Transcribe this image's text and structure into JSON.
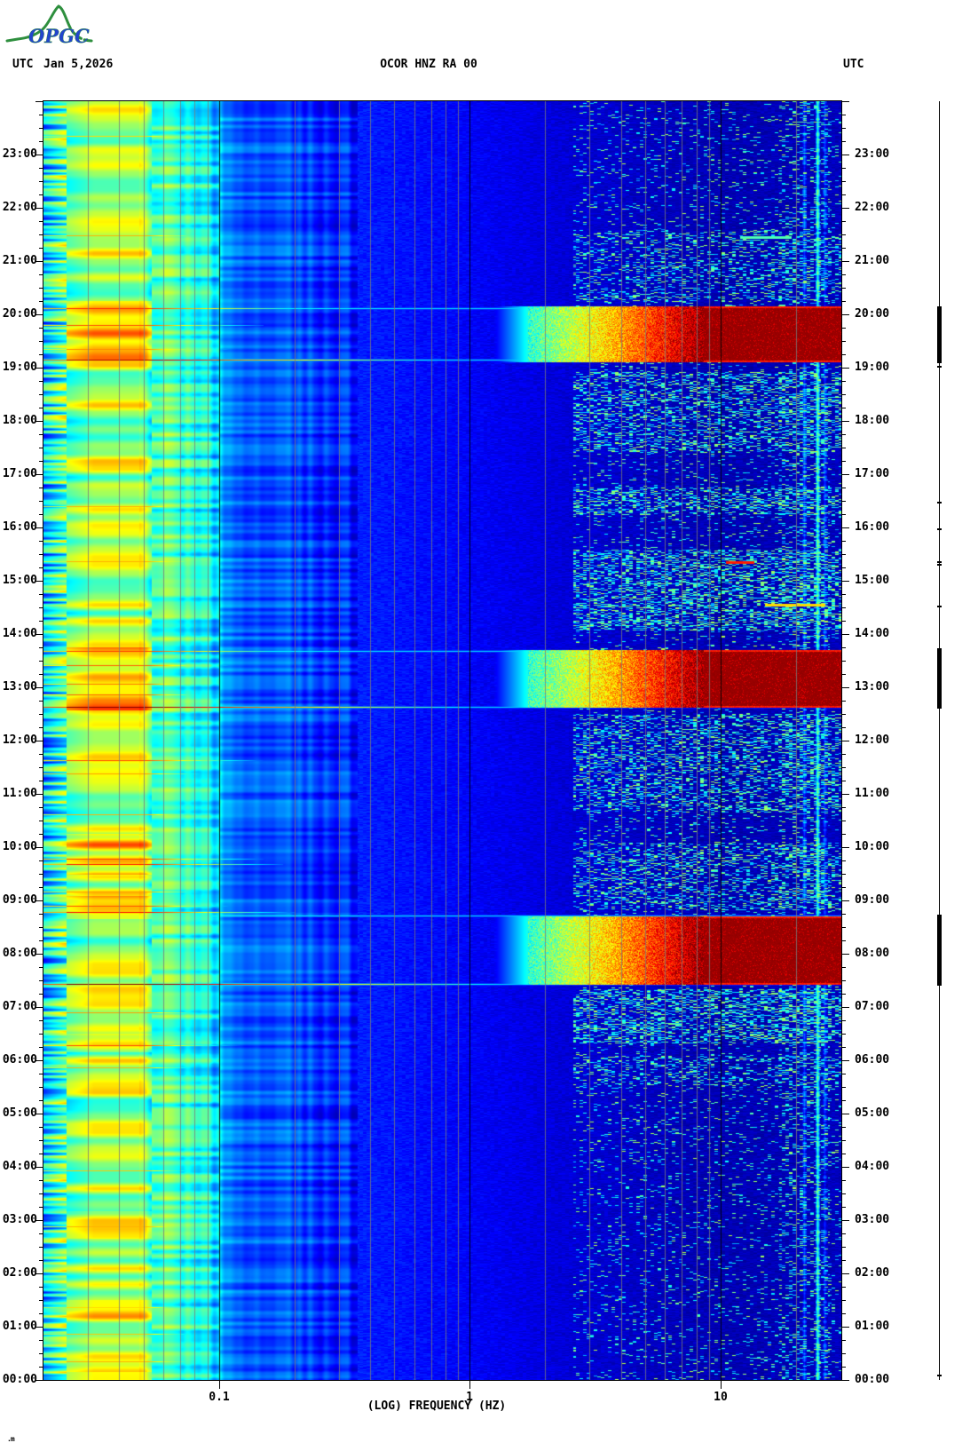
{
  "header": {
    "utc_left": "UTC",
    "date": "Jan 5,2026",
    "title": "OCOR HNZ RA 00",
    "utc_right": "UTC",
    "logo_text": "OPGC"
  },
  "footer_artifact": ".m",
  "colors": {
    "logo_green": "#2e8f3e",
    "logo_blue": "#2244cc",
    "grid_gray": "#7a7a7a",
    "axis_black": "#000000"
  },
  "chart_data": {
    "type": "heatmap",
    "subtype": "seismic-spectrogram",
    "title": "OCOR HNZ RA 00",
    "xlabel": "(LOG) FREQUENCY (HZ)",
    "x_scale": "log",
    "freq_min_hz": 0.02,
    "freq_max_hz": 30,
    "x_ticks": [
      {
        "value": 0.1,
        "label": "0.1"
      },
      {
        "value": 1,
        "label": "1"
      },
      {
        "value": 10,
        "label": "10"
      }
    ],
    "grid_minor_multipliers": [
      2,
      3,
      4,
      5,
      6,
      7,
      8,
      9
    ],
    "y_axis_label": "UTC",
    "time_top": "24:00",
    "time_bottom": "00:00",
    "minutes_per_row": 1,
    "hour_labels": [
      "23:00",
      "22:00",
      "21:00",
      "20:00",
      "19:00",
      "18:00",
      "17:00",
      "16:00",
      "15:00",
      "14:00",
      "13:00",
      "12:00",
      "11:00",
      "10:00",
      "09:00",
      "08:00",
      "07:00",
      "06:00",
      "05:00",
      "04:00",
      "03:00",
      "02:00",
      "01:00",
      "00:00"
    ],
    "colormap": "jet",
    "level_anchors_logf": [
      -1.7,
      -1.62,
      -1.5,
      -1.32,
      -1.26,
      -1.12,
      -1.0,
      -0.9,
      -0.72,
      -0.45,
      -0.2,
      0.0,
      0.4,
      0.8,
      1.0,
      1.48
    ],
    "level_anchors_value": [
      0.33,
      0.46,
      0.55,
      0.55,
      0.47,
      0.42,
      0.32,
      0.225,
      0.195,
      0.155,
      0.135,
      0.12,
      0.085,
      0.06,
      0.05,
      0.06
    ],
    "broadband_events": [
      {
        "start": "19:07",
        "end": "20:09",
        "fmin_hz": 1.7,
        "fmax_hz": 30,
        "strength": 1.0
      },
      {
        "start": "12:38",
        "end": "13:42",
        "fmin_hz": 1.7,
        "fmax_hz": 30,
        "strength": 1.0
      },
      {
        "start": "07:26",
        "end": "08:42",
        "fmin_hz": 1.7,
        "fmax_hz": 30,
        "strength": 1.0
      }
    ],
    "microseism_streaks": [
      {
        "time": "23:21",
        "strength": 0.66,
        "fend_hz": 0.09
      },
      {
        "time": "21:29",
        "strength": 0.7,
        "fend_hz": 0.12
      },
      {
        "time": "20:07",
        "strength": 0.84,
        "fend_hz": 0.3
      },
      {
        "time": "19:48",
        "strength": 0.8,
        "fend_hz": 0.15
      },
      {
        "time": "19:21",
        "strength": 0.74,
        "fend_hz": 0.12
      },
      {
        "time": "19:09",
        "strength": 0.95,
        "fend_hz": 1.2
      },
      {
        "time": "16:24",
        "strength": 0.7,
        "fend_hz": 0.1
      },
      {
        "time": "15:22",
        "strength": 0.7,
        "fend_hz": 0.12
      },
      {
        "time": "13:41",
        "strength": 0.82,
        "fend_hz": 0.25
      },
      {
        "time": "13:25",
        "strength": 0.78,
        "fend_hz": 0.12
      },
      {
        "time": "13:04",
        "strength": 0.76,
        "fend_hz": 0.1
      },
      {
        "time": "12:52",
        "strength": 0.78,
        "fend_hz": 0.1
      },
      {
        "time": "12:38",
        "strength": 1.0,
        "fend_hz": 1.5
      },
      {
        "time": "11:38",
        "strength": 0.8,
        "fend_hz": 0.15
      },
      {
        "time": "11:23",
        "strength": 0.72,
        "fend_hz": 0.1
      },
      {
        "time": "10:37",
        "strength": 0.7,
        "fend_hz": 0.1
      },
      {
        "time": "09:47",
        "strength": 0.82,
        "fend_hz": 0.15
      },
      {
        "time": "09:41",
        "strength": 0.86,
        "fend_hz": 0.18
      },
      {
        "time": "09:10",
        "strength": 0.72,
        "fend_hz": 0.1
      },
      {
        "time": "08:54",
        "strength": 0.8,
        "fend_hz": 0.12
      },
      {
        "time": "08:47",
        "strength": 0.88,
        "fend_hz": 0.2
      },
      {
        "time": "07:26",
        "strength": 1.0,
        "fend_hz": 2.0
      },
      {
        "time": "06:54",
        "strength": 0.72,
        "fend_hz": 0.1
      },
      {
        "time": "06:17",
        "strength": 0.8,
        "fend_hz": 0.12
      },
      {
        "time": "05:52",
        "strength": 0.7,
        "fend_hz": 0.09
      },
      {
        "time": "03:56",
        "strength": 0.68,
        "fend_hz": 0.09
      },
      {
        "time": "02:53",
        "strength": 0.7,
        "fend_hz": 0.1
      },
      {
        "time": "01:22",
        "strength": 0.66,
        "fend_hz": 0.09
      },
      {
        "time": "00:52",
        "strength": 0.68,
        "fend_hz": 0.09
      },
      {
        "time": "00:21",
        "strength": 0.7,
        "fend_hz": 0.1
      }
    ],
    "warm_windows": [
      {
        "from": "19:10",
        "to": "20:15",
        "add": 0.1
      },
      {
        "from": "12:35",
        "to": "13:45",
        "add": 0.13
      },
      {
        "from": "09:30",
        "to": "10:15",
        "add": 0.12
      },
      {
        "from": "08:40",
        "to": "09:05",
        "add": 0.1
      },
      {
        "from": "06:10",
        "to": "06:30",
        "add": 0.08
      },
      {
        "from": "00:10",
        "to": "01:30",
        "add": 0.06
      },
      {
        "from": "02:40",
        "to": "03:10",
        "add": 0.06
      }
    ],
    "cyan_onset_lines": [
      "20:07",
      "19:09",
      "13:41",
      "12:38",
      "08:43",
      "07:26"
    ],
    "persistent_hf_lines": [
      {
        "freq_hz": 24.3,
        "strength": 0.45
      },
      {
        "freq_hz": 21.5,
        "strength": 0.22
      },
      {
        "freq_hz": 26.0,
        "strength": 0.2
      }
    ],
    "hf_speckle_periods": [
      {
        "from": "05:30",
        "to": "06:05",
        "density": 0.22
      },
      {
        "from": "06:20",
        "to": "07:20",
        "density": 0.38
      },
      {
        "from": "08:50",
        "to": "10:05",
        "density": 0.28
      },
      {
        "from": "10:40",
        "to": "12:30",
        "density": 0.3
      },
      {
        "from": "14:05",
        "to": "15:35",
        "density": 0.38
      },
      {
        "from": "16:15",
        "to": "16:45",
        "density": 0.35
      },
      {
        "from": "17:25",
        "to": "18:55",
        "density": 0.3
      },
      {
        "from": "20:15",
        "to": "21:35",
        "density": 0.22
      }
    ],
    "hf_speckle_default_density": 0.07,
    "hf_marks": [
      {
        "time": "15:21",
        "f1_hz": 10.5,
        "f2_hz": 13.5,
        "strength": 0.85
      },
      {
        "time": "14:33",
        "f1_hz": 15,
        "f2_hz": 26,
        "strength": 0.66
      },
      {
        "time": "21:27",
        "f1_hz": 12,
        "f2_hz": 19,
        "strength": 0.45
      }
    ],
    "detection_bar": {
      "thick_segments": [
        {
          "from": "19:05",
          "to": "20:09"
        },
        {
          "from": "12:36",
          "to": "13:44"
        },
        {
          "from": "07:24",
          "to": "08:44"
        }
      ],
      "small_marks": [
        "19:02",
        "16:29",
        "15:59",
        "15:22",
        "15:19",
        "14:32",
        "00:06"
      ]
    }
  }
}
